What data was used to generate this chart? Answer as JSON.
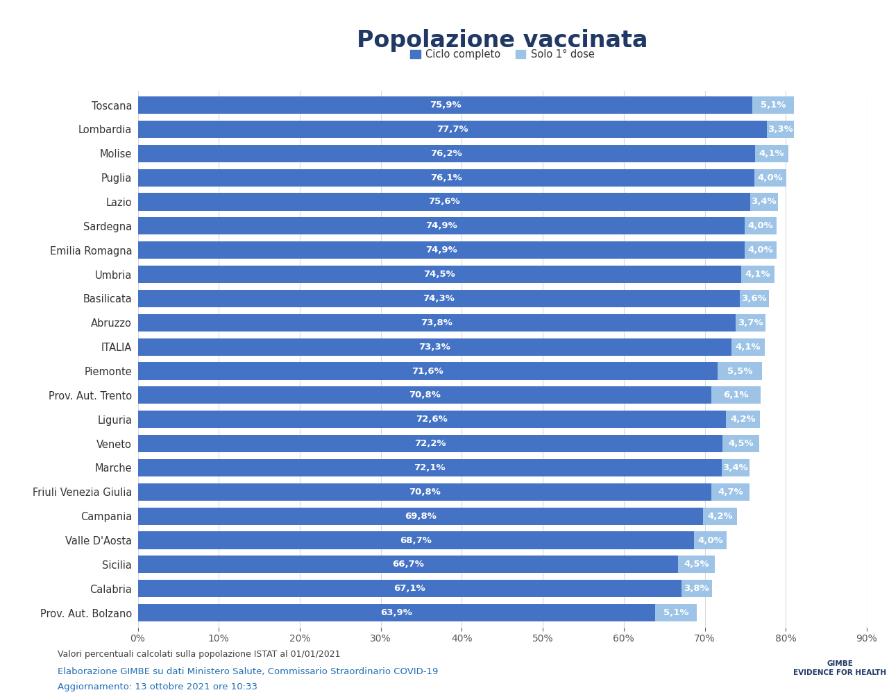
{
  "title": "Popolazione vaccinata",
  "title_color": "#1F3864",
  "legend_labels": [
    "Ciclo completo",
    "Solo 1° dose"
  ],
  "color_complete": "#4472C4",
  "color_partial": "#9DC3E6",
  "background_color": "#FFFFFF",
  "regions": [
    "Toscana",
    "Lombardia",
    "Molise",
    "Puglia",
    "Lazio",
    "Sardegna",
    "Emilia Romagna",
    "Umbria",
    "Basilicata",
    "Abruzzo",
    "ITALIA",
    "Piemonte",
    "Prov. Aut. Trento",
    "Liguria",
    "Veneto",
    "Marche",
    "Friuli Venezia Giulia",
    "Campania",
    "Valle D'Aosta",
    "Sicilia",
    "Calabria",
    "Prov. Aut. Bolzano"
  ],
  "complete": [
    75.9,
    77.7,
    76.2,
    76.1,
    75.6,
    74.9,
    74.9,
    74.5,
    74.3,
    73.8,
    73.3,
    71.6,
    70.8,
    72.6,
    72.2,
    72.1,
    70.8,
    69.8,
    68.7,
    66.7,
    67.1,
    63.9
  ],
  "partial": [
    5.1,
    3.3,
    4.1,
    4.0,
    3.4,
    4.0,
    4.0,
    4.1,
    3.6,
    3.7,
    4.1,
    5.5,
    6.1,
    4.2,
    4.5,
    3.4,
    4.7,
    4.2,
    4.0,
    4.5,
    3.8,
    5.1
  ],
  "xlim": [
    0,
    90
  ],
  "xticks": [
    0,
    10,
    20,
    30,
    40,
    50,
    60,
    70,
    80,
    90
  ],
  "xlabel_color": "#595959",
  "footnote1": "Valori percentuali calcolati sulla popolazione ISTAT al 01/01/2021",
  "footnote2": "Elaborazione GIMBE su dati Ministero Salute, Commissario Straordinario COVID-19",
  "footnote3": "Aggiornamento: 13 ottobre 2021 ore 10:33",
  "footnote_color1": "#404040",
  "footnote_color2": "#1F6DB5",
  "grid_color": "#D9D9D9",
  "bar_height": 0.72,
  "label_fontsize": 10.5,
  "tick_fontsize": 10,
  "title_fontsize": 24,
  "legend_fontsize": 10.5,
  "annot_fontsize": 9.5
}
